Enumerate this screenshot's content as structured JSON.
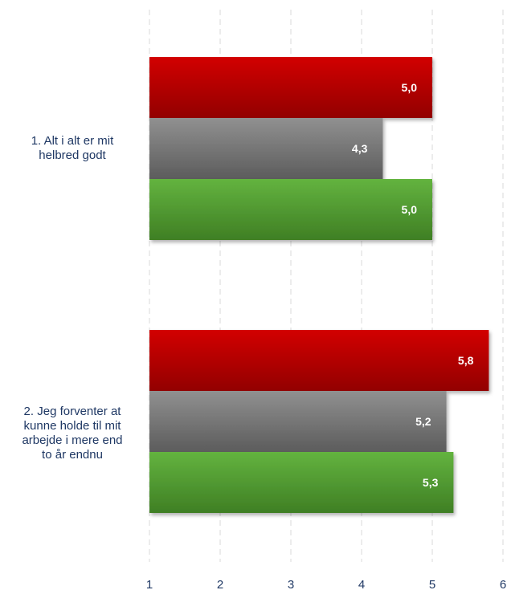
{
  "chart_data": {
    "type": "bar",
    "orientation": "horizontal",
    "categories": [
      "1. Alt i alt er mit helbred godt",
      "2. Jeg forventer at kunne holde til mit arbejde i mere end to år endnu"
    ],
    "category_lines": [
      [
        "1. Alt i alt er mit",
        "helbred godt"
      ],
      [
        "2. Jeg forventer at",
        "kunne holde til mit",
        "arbejde i mere end",
        "to år endnu"
      ]
    ],
    "series": [
      {
        "values": [
          5.0,
          5.8
        ],
        "labels": [
          "5,0",
          "5,8"
        ],
        "color": "#c00000"
      },
      {
        "values": [
          4.3,
          5.2
        ],
        "labels": [
          "4,3",
          "5,2"
        ],
        "color": "#7f7f7f"
      },
      {
        "values": [
          5.0,
          5.3
        ],
        "labels": [
          "5,0",
          "5,3"
        ],
        "color": "#5aa43a"
      }
    ],
    "xlim": [
      1,
      6
    ],
    "xticks": [
      "1",
      "2",
      "3",
      "4",
      "5",
      "6"
    ],
    "grid": "dashed vertical",
    "legend": "none"
  }
}
